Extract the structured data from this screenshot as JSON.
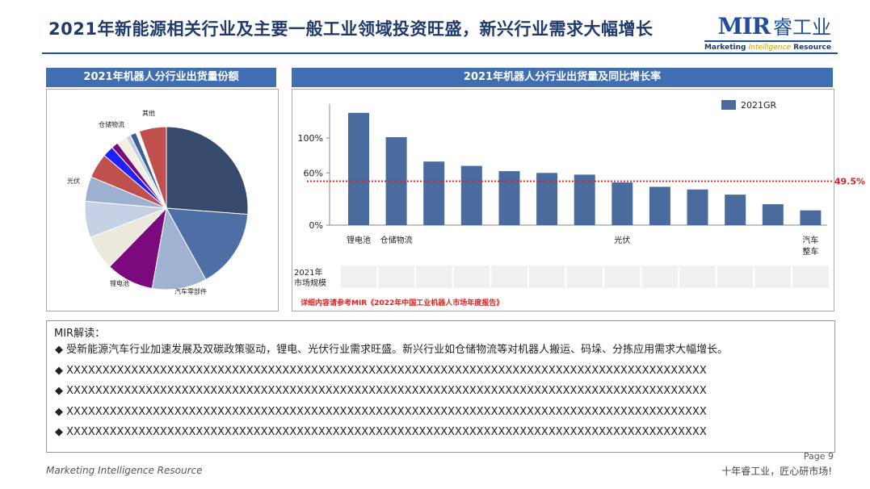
{
  "header": {
    "title": "2021年新能源相关行业及主要一般工业领域投资旺盛，新兴行业需求大幅增长",
    "logo_mark": "MIR",
    "logo_cn": "睿工业",
    "logo_sub_a": "Marketing ",
    "logo_sub_b": "Intelligence",
    "logo_sub_c": " Resource"
  },
  "pie_panel": {
    "title": "2021年机器人分行业出货量份额"
  },
  "bar_panel": {
    "title": "2021年机器人分行业出货量及同比增长率",
    "table_row_label_1": "2021年",
    "table_row_label_2": "市场规模",
    "note": "详细内容请参考MIR《2022年中国工业机器人市场年度报告》"
  },
  "chart_data": [
    {
      "type": "pie",
      "title": "2021年机器人分行业出货量份额",
      "slices": [
        {
          "label": "",
          "value": 26.6,
          "color": "#354a6c"
        },
        {
          "label": "",
          "value": 16.0,
          "color": "#4e6fa5"
        },
        {
          "label": "汽车零部件",
          "value": 11.0,
          "color": "#9fb2d2"
        },
        {
          "label": "锂电池",
          "value": 9.6,
          "color": "#7b0a7e"
        },
        {
          "label": "",
          "value": 7.0,
          "color": "#ece9dc"
        },
        {
          "label": "",
          "value": 7.3,
          "color": "#c4d0e3"
        },
        {
          "label": "光伏",
          "value": 5.0,
          "color": "#9eb0cf"
        },
        {
          "label": "",
          "value": 5.0,
          "color": "#c0504d"
        },
        {
          "label": "",
          "value": 2.2,
          "color": "#1f1fff"
        },
        {
          "label": "",
          "value": 1.4,
          "color": "#7b0a7e"
        },
        {
          "label": "仓储物流",
          "value": 2.0,
          "color": "#f3f0e3"
        },
        {
          "label": "",
          "value": 1.0,
          "color": "#c4d0e3"
        },
        {
          "label": "",
          "value": 1.2,
          "color": "#3a5f95"
        },
        {
          "label": "",
          "value": 0.7,
          "color": "#ffffff"
        },
        {
          "label": "其他",
          "value": 5.5,
          "color": "#c0504d"
        }
      ]
    },
    {
      "type": "bar",
      "title": "2021年机器人分行业出货量及同比增长率",
      "legend": "2021GR",
      "legend_position": "top-right",
      "categories": [
        "锂电池",
        "仓储物流",
        "",
        "",
        "",
        "",
        "",
        "光伏",
        "",
        "",
        "",
        "",
        "汽车整车"
      ],
      "values": [
        129,
        101,
        73,
        68,
        62,
        60,
        58,
        49,
        44,
        41,
        35,
        24,
        17
      ],
      "series_color": "#4a6b9e",
      "yticks": [
        "0%",
        "60%",
        "100%"
      ],
      "ytick_values": [
        0,
        60,
        100
      ],
      "ylim": [
        0,
        139
      ],
      "reference_line": {
        "value": 49.5,
        "label": "49.5%",
        "color": "#e02020"
      }
    }
  ],
  "reading": {
    "heading": "MIR解读：",
    "items": [
      "◆ 受新能源汽车行业加速发展及双碳政策驱动，锂电、光伏行业需求旺盛。新兴行业如仓储物流等对机器人搬运、码垛、分拣应用需求大幅增长。",
      "◆ XXXXXXXXXXXXXXXXXXXXXXXXXXXXXXXXXXXXXXXXXXXXXXXXXXXXXXXXXXXXXXXXXXXXXXXXXXXXXXXXXXXXXXXXX",
      "◆ XXXXXXXXXXXXXXXXXXXXXXXXXXXXXXXXXXXXXXXXXXXXXXXXXXXXXXXXXXXXXXXXXXXXXXXXXXXXXXXXXXXXXXXXX",
      "◆ XXXXXXXXXXXXXXXXXXXXXXXXXXXXXXXXXXXXXXXXXXXXXXXXXXXXXXXXXXXXXXXXXXXXXXXXXXXXXXXXXXXXXXXXX",
      "◆ XXXXXXXXXXXXXXXXXXXXXXXXXXXXXXXXXXXXXXXXXXXXXXXXXXXXXXXXXXXXXXXXXXXXXXXXXXXXXXXXXXXXXXXXX"
    ]
  },
  "footer": {
    "page": "Page 9",
    "left": "Marketing Intelligence Resource",
    "right": "十年睿工业，匠心研市场!"
  }
}
